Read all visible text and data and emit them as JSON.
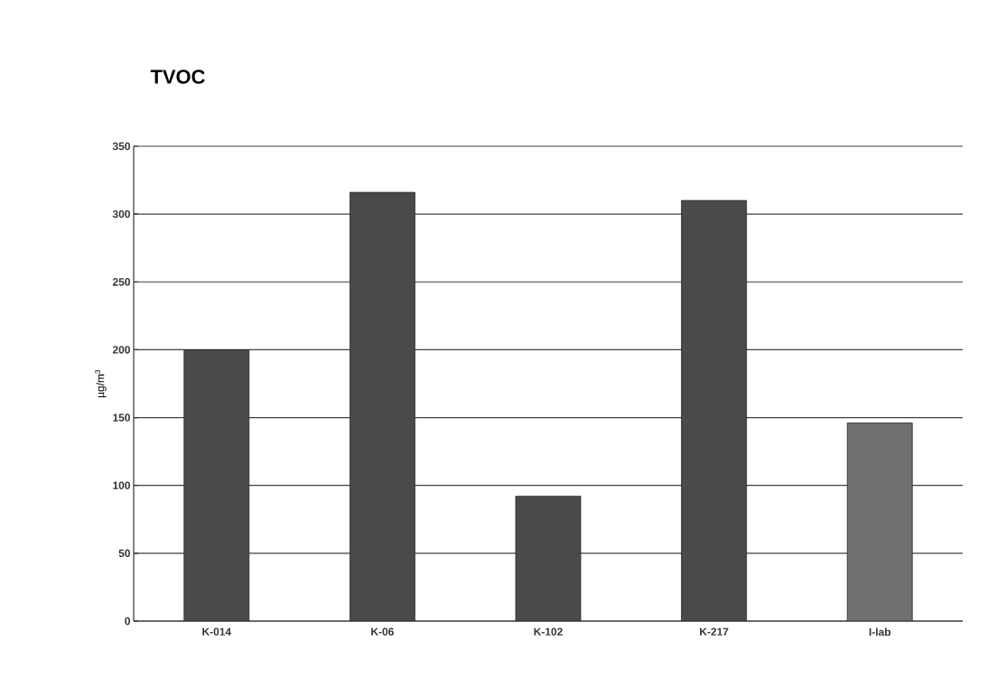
{
  "chart_data": {
    "type": "bar",
    "title": "TVOC",
    "ylabel": "µg/m$^{3}$",
    "categories": [
      "K-014",
      "K-06",
      "K-102",
      "K-217",
      "I-lab"
    ],
    "values": [
      200,
      316,
      92,
      310,
      146
    ],
    "colors": [
      "#4a4a4a",
      "#4a4a4a",
      "#4a4a4a",
      "#4a4a4a",
      "#707070"
    ],
    "ylim": [
      0,
      350
    ],
    "yticks": [
      0,
      50,
      100,
      150,
      200,
      250,
      300,
      350
    ],
    "grid": "y"
  }
}
